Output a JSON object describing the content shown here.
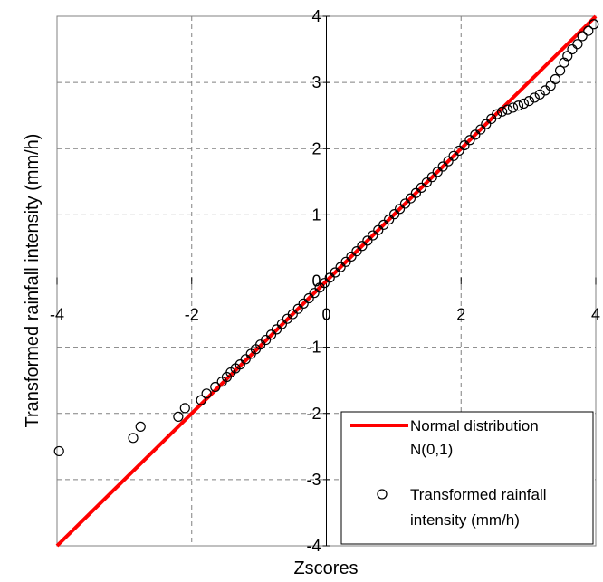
{
  "chart_data": {
    "type": "scatter",
    "xlabel": "Zscores",
    "ylabel": "Transformed rainfall intensity (mm/h)",
    "xlim": [
      -4,
      4
    ],
    "ylim": [
      -4,
      4
    ],
    "x_ticks": [
      -4,
      -2,
      0,
      2,
      4
    ],
    "y_ticks": [
      -4,
      -3,
      -2,
      -1,
      0,
      1,
      2,
      3,
      4
    ],
    "grid": true,
    "legend_position": "bottom-right",
    "series": [
      {
        "name": "Normal distribution N(0,1)",
        "kind": "line",
        "color": "#ff0000",
        "points": [
          [
            -4,
            -4
          ],
          [
            4,
            4
          ]
        ]
      },
      {
        "name": "Transformed rainfall intensity (mm/h)",
        "kind": "scatter",
        "marker": "open-circle",
        "color": "#000000",
        "points": [
          [
            -3.97,
            -2.57
          ],
          [
            -2.87,
            -2.37
          ],
          [
            -2.76,
            -2.2
          ],
          [
            -2.2,
            -2.05
          ],
          [
            -2.1,
            -1.92
          ],
          [
            -1.86,
            -1.8
          ],
          [
            -1.78,
            -1.7
          ],
          [
            -1.65,
            -1.6
          ],
          [
            -1.55,
            -1.52
          ],
          [
            -1.48,
            -1.45
          ],
          [
            -1.42,
            -1.38
          ],
          [
            -1.35,
            -1.32
          ],
          [
            -1.28,
            -1.26
          ],
          [
            -1.2,
            -1.18
          ],
          [
            -1.12,
            -1.1
          ],
          [
            -1.05,
            -1.03
          ],
          [
            -0.98,
            -0.96
          ],
          [
            -0.9,
            -0.89
          ],
          [
            -0.82,
            -0.81
          ],
          [
            -0.74,
            -0.73
          ],
          [
            -0.66,
            -0.65
          ],
          [
            -0.58,
            -0.57
          ],
          [
            -0.5,
            -0.5
          ],
          [
            -0.42,
            -0.42
          ],
          [
            -0.34,
            -0.34
          ],
          [
            -0.26,
            -0.26
          ],
          [
            -0.18,
            -0.18
          ],
          [
            -0.1,
            -0.1
          ],
          [
            -0.03,
            -0.03
          ],
          [
            0.05,
            0.05
          ],
          [
            0.13,
            0.13
          ],
          [
            0.21,
            0.21
          ],
          [
            0.29,
            0.29
          ],
          [
            0.37,
            0.37
          ],
          [
            0.45,
            0.45
          ],
          [
            0.53,
            0.53
          ],
          [
            0.61,
            0.61
          ],
          [
            0.69,
            0.69
          ],
          [
            0.77,
            0.77
          ],
          [
            0.85,
            0.85
          ],
          [
            0.93,
            0.93
          ],
          [
            1.01,
            1.01
          ],
          [
            1.09,
            1.09
          ],
          [
            1.17,
            1.17
          ],
          [
            1.25,
            1.25
          ],
          [
            1.33,
            1.33
          ],
          [
            1.41,
            1.41
          ],
          [
            1.49,
            1.49
          ],
          [
            1.57,
            1.57
          ],
          [
            1.65,
            1.65
          ],
          [
            1.73,
            1.73
          ],
          [
            1.81,
            1.81
          ],
          [
            1.89,
            1.89
          ],
          [
            1.97,
            1.97
          ],
          [
            2.05,
            2.05
          ],
          [
            2.13,
            2.13
          ],
          [
            2.21,
            2.21
          ],
          [
            2.29,
            2.29
          ],
          [
            2.37,
            2.37
          ],
          [
            2.45,
            2.45
          ],
          [
            2.53,
            2.52
          ],
          [
            2.61,
            2.56
          ],
          [
            2.69,
            2.59
          ],
          [
            2.77,
            2.62
          ],
          [
            2.85,
            2.65
          ],
          [
            2.93,
            2.68
          ],
          [
            3.01,
            2.72
          ],
          [
            3.09,
            2.77
          ],
          [
            3.17,
            2.82
          ],
          [
            3.25,
            2.88
          ],
          [
            3.33,
            2.95
          ],
          [
            3.4,
            3.05
          ],
          [
            3.47,
            3.18
          ],
          [
            3.53,
            3.3
          ],
          [
            3.58,
            3.4
          ],
          [
            3.65,
            3.5
          ],
          [
            3.73,
            3.58
          ],
          [
            3.8,
            3.7
          ],
          [
            3.89,
            3.78
          ],
          [
            3.97,
            3.88
          ]
        ]
      }
    ]
  }
}
